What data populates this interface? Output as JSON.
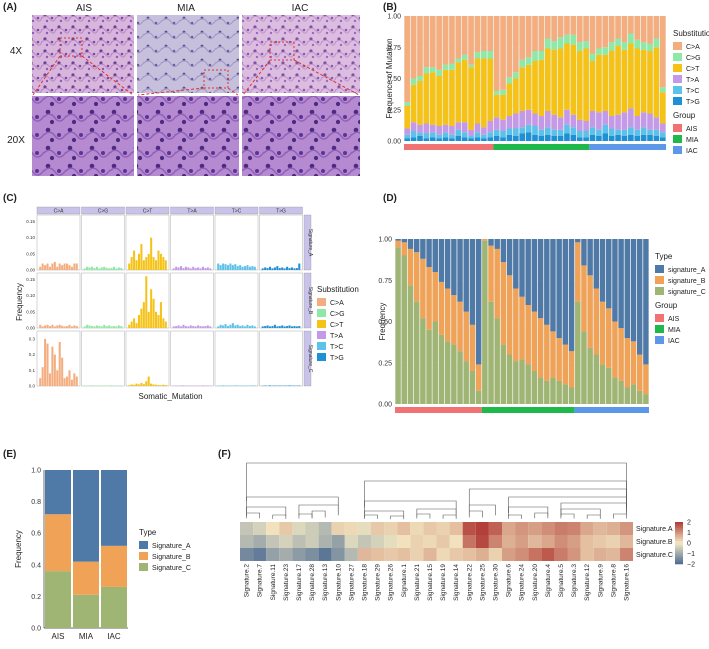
{
  "panels": {
    "A": {
      "label": "(A)",
      "columns": [
        "AIS",
        "MIA",
        "IAC"
      ],
      "rows": [
        "4X",
        "20X"
      ]
    },
    "B": {
      "label": "(B)"
    },
    "C": {
      "label": "(C)"
    },
    "D": {
      "label": "(D)"
    },
    "E": {
      "label": "(E)"
    },
    "F": {
      "label": "(F)"
    }
  },
  "colors": {
    "CA": "#f4ad7e",
    "CG": "#8ee8a6",
    "CT": "#f5c218",
    "TA": "#c49ae8",
    "TC": "#5cc2ea",
    "TG": "#1e90d6",
    "sigA": "#4f7aa8",
    "sigB": "#f0a257",
    "sigC": "#9fb574",
    "AIS": "#f07272",
    "MIA": "#1fb84b",
    "IAC": "#5d97e8"
  },
  "chart_data": [
    {
      "id": "B",
      "type": "bar",
      "stacked": true,
      "title": "",
      "xlabel": "",
      "ylabel": "Frequence of Mutation",
      "ylim": [
        0,
        1
      ],
      "yticks": [
        "0.00",
        "0.25",
        "0.50",
        "0.75",
        "1.00"
      ],
      "legend": {
        "title": "Substitution",
        "labels": [
          "C>A",
          "C>G",
          "C>T",
          "T>A",
          "T>C",
          "T>G"
        ]
      },
      "group_legend": {
        "title": "Group",
        "labels": [
          "AIS",
          "MIA",
          "IAC"
        ]
      },
      "groups": [
        {
          "name": "AIS",
          "count": 14
        },
        {
          "name": "MIA",
          "count": 15
        },
        {
          "name": "IAC",
          "count": 12
        }
      ],
      "series": [
        {
          "name": "T>G",
          "values": [
            0.02,
            0.03,
            0.04,
            0.02,
            0.03,
            0.02,
            0.03,
            0.02,
            0.04,
            0.03,
            0.02,
            0.03,
            0.02,
            0.03,
            0.04,
            0.03,
            0.05,
            0.04,
            0.06,
            0.07,
            0.05,
            0.04,
            0.05,
            0.04,
            0.04,
            0.06,
            0.05,
            0.03,
            0.03,
            0.05,
            0.04,
            0.06,
            0.04,
            0.05,
            0.04,
            0.05,
            0.04,
            0.05,
            0.05,
            0.04,
            0.03
          ]
        },
        {
          "name": "T>C",
          "values": [
            0.03,
            0.05,
            0.03,
            0.04,
            0.04,
            0.03,
            0.04,
            0.03,
            0.05,
            0.04,
            0.02,
            0.04,
            0.03,
            0.04,
            0.05,
            0.05,
            0.05,
            0.06,
            0.05,
            0.06,
            0.07,
            0.05,
            0.06,
            0.05,
            0.05,
            0.07,
            0.06,
            0.05,
            0.05,
            0.06,
            0.05,
            0.07,
            0.06,
            0.04,
            0.05,
            0.06,
            0.05,
            0.06,
            0.04,
            0.05,
            0.04
          ]
        },
        {
          "name": "T>A",
          "values": [
            0.05,
            0.07,
            0.06,
            0.08,
            0.06,
            0.07,
            0.06,
            0.07,
            0.06,
            0.08,
            0.05,
            0.07,
            0.06,
            0.09,
            0.1,
            0.09,
            0.1,
            0.12,
            0.13,
            0.12,
            0.1,
            0.11,
            0.13,
            0.12,
            0.1,
            0.12,
            0.1,
            0.09,
            0.08,
            0.13,
            0.14,
            0.11,
            0.1,
            0.12,
            0.14,
            0.15,
            0.11,
            0.12,
            0.13,
            0.1,
            0.07
          ]
        },
        {
          "name": "C>T",
          "values": [
            0.18,
            0.3,
            0.35,
            0.4,
            0.42,
            0.4,
            0.44,
            0.45,
            0.48,
            0.5,
            0.5,
            0.52,
            0.55,
            0.5,
            0.18,
            0.2,
            0.26,
            0.28,
            0.35,
            0.36,
            0.42,
            0.45,
            0.5,
            0.52,
            0.55,
            0.53,
            0.56,
            0.55,
            0.58,
            0.4,
            0.46,
            0.45,
            0.52,
            0.55,
            0.5,
            0.52,
            0.54,
            0.5,
            0.5,
            0.56,
            0.25
          ]
        },
        {
          "name": "C>G",
          "values": [
            0.03,
            0.05,
            0.04,
            0.05,
            0.04,
            0.05,
            0.04,
            0.05,
            0.03,
            0.04,
            0.02,
            0.05,
            0.06,
            0.06,
            0.03,
            0.04,
            0.05,
            0.05,
            0.06,
            0.06,
            0.08,
            0.07,
            0.08,
            0.07,
            0.09,
            0.07,
            0.08,
            0.07,
            0.06,
            0.06,
            0.05,
            0.06,
            0.07,
            0.06,
            0.06,
            0.08,
            0.07,
            0.06,
            0.06,
            0.07,
            0.04
          ]
        },
        {
          "name": "C>A",
          "values": [
            0.69,
            0.5,
            0.48,
            0.41,
            0.41,
            0.43,
            0.39,
            0.38,
            0.34,
            0.31,
            0.39,
            0.29,
            0.28,
            0.28,
            0.6,
            0.59,
            0.49,
            0.45,
            0.35,
            0.33,
            0.28,
            0.28,
            0.18,
            0.2,
            0.17,
            0.15,
            0.15,
            0.21,
            0.2,
            0.3,
            0.26,
            0.25,
            0.21,
            0.18,
            0.21,
            0.14,
            0.19,
            0.21,
            0.22,
            0.18,
            0.57
          ]
        }
      ]
    },
    {
      "id": "C",
      "type": "bar",
      "faceted": true,
      "xlabel": "Somatic_Mutation",
      "ylabel": "Frequency",
      "columns": [
        "C>A",
        "C>G",
        "C>T",
        "T>A",
        "T>C",
        "T>G"
      ],
      "rows": [
        "Signature_A",
        "Signature_B",
        "Signature_C"
      ],
      "row_yticks": [
        [
          "0.00",
          "0.05",
          "0.10",
          "0.15"
        ],
        [
          "0.00",
          "0.05",
          "0.10",
          "0.15"
        ],
        [
          "0.0",
          "0.1",
          "0.2",
          "0.3"
        ]
      ],
      "row_ymax": [
        0.17,
        0.17,
        0.35
      ],
      "legend": {
        "title": "Substitution",
        "labels": [
          "C>A",
          "C>G",
          "C>T",
          "T>A",
          "T>C",
          "T>G"
        ]
      },
      "bins": [
        [
          [
            0.01,
            0.02,
            0.015,
            0.02,
            0.01,
            0.02,
            0.025,
            0.01,
            0.02,
            0.015,
            0.02,
            0.02,
            0.015,
            0.01,
            0.02,
            0.02
          ],
          [
            0.005,
            0.01,
            0.008,
            0.01,
            0.006,
            0.01,
            0.005,
            0.008,
            0.01,
            0.007,
            0.005,
            0.006,
            0.01,
            0.005,
            0.008,
            0.006
          ],
          [
            0.02,
            0.04,
            0.06,
            0.03,
            0.05,
            0.08,
            0.03,
            0.04,
            0.05,
            0.1,
            0.04,
            0.03,
            0.06,
            0.05,
            0.04,
            0.03
          ],
          [
            0.005,
            0.01,
            0.008,
            0.012,
            0.006,
            0.01,
            0.008,
            0.005,
            0.01,
            0.006,
            0.008,
            0.005,
            0.01,
            0.006,
            0.008,
            0.005
          ],
          [
            0.02,
            0.015,
            0.02,
            0.018,
            0.015,
            0.02,
            0.015,
            0.018,
            0.012,
            0.015,
            0.01,
            0.012,
            0.015,
            0.01,
            0.012,
            0.01
          ],
          [
            0.005,
            0.008,
            0.006,
            0.01,
            0.005,
            0.008,
            0.012,
            0.006,
            0.008,
            0.005,
            0.01,
            0.006,
            0.008,
            0.005,
            0.006,
            0.02
          ]
        ],
        [
          [
            0.01,
            0.005,
            0.008,
            0.01,
            0.006,
            0.01,
            0.005,
            0.008,
            0.01,
            0.007,
            0.005,
            0.006,
            0.01,
            0.005,
            0.008,
            0.006
          ],
          [
            0.005,
            0.01,
            0.008,
            0.006,
            0.005,
            0.008,
            0.006,
            0.005,
            0.01,
            0.006,
            0.008,
            0.005,
            0.006,
            0.005,
            0.008,
            0.006
          ],
          [
            0.01,
            0.02,
            0.03,
            0.015,
            0.04,
            0.06,
            0.08,
            0.16,
            0.05,
            0.12,
            0.09,
            0.05,
            0.04,
            0.08,
            0.03,
            0.02
          ],
          [
            0.005,
            0.006,
            0.008,
            0.005,
            0.01,
            0.006,
            0.005,
            0.008,
            0.006,
            0.005,
            0.008,
            0.006,
            0.005,
            0.006,
            0.008,
            0.005
          ],
          [
            0.005,
            0.01,
            0.008,
            0.012,
            0.006,
            0.01,
            0.015,
            0.008,
            0.01,
            0.006,
            0.008,
            0.005,
            0.01,
            0.006,
            0.008,
            0.005
          ],
          [
            0.005,
            0.006,
            0.008,
            0.005,
            0.006,
            0.01,
            0.005,
            0.006,
            0.008,
            0.005,
            0.006,
            0.008,
            0.005,
            0.006,
            0.005,
            0.006
          ]
        ],
        [
          [
            0.05,
            0.12,
            0.3,
            0.27,
            0.08,
            0.25,
            0.2,
            0.1,
            0.28,
            0.18,
            0.05,
            0.06,
            0.1,
            0.04,
            0.08,
            0.06
          ],
          [
            0.002,
            0.003,
            0.002,
            0.004,
            0.002,
            0.003,
            0.002,
            0.003,
            0.002,
            0.003,
            0.002,
            0.004,
            0.002,
            0.003,
            0.002,
            0.003
          ],
          [
            0.005,
            0.01,
            0.008,
            0.015,
            0.01,
            0.02,
            0.012,
            0.03,
            0.06,
            0.015,
            0.01,
            0.008,
            0.006,
            0.005,
            0.008,
            0.006
          ],
          [
            0.002,
            0.003,
            0.002,
            0.003,
            0.004,
            0.002,
            0.003,
            0.002,
            0.003,
            0.002,
            0.003,
            0.002,
            0.004,
            0.002,
            0.003,
            0.002
          ],
          [
            0.003,
            0.002,
            0.004,
            0.003,
            0.002,
            0.003,
            0.002,
            0.004,
            0.003,
            0.002,
            0.003,
            0.002,
            0.003,
            0.002,
            0.004,
            0.003
          ],
          [
            0.002,
            0.003,
            0.002,
            0.004,
            0.002,
            0.003,
            0.002,
            0.003,
            0.002,
            0.003,
            0.002,
            0.004,
            0.002,
            0.003,
            0.002,
            0.003
          ]
        ]
      ]
    },
    {
      "id": "D",
      "type": "bar",
      "stacked": true,
      "xlabel": "",
      "ylabel": "Frequency",
      "ylim": [
        0,
        1
      ],
      "yticks": [
        "0.00",
        "0.25",
        "0.50",
        "0.75",
        "1.00"
      ],
      "legend": {
        "title": "Type",
        "labels": [
          "signature_A",
          "signature_B",
          "signature_C"
        ]
      },
      "group_legend": {
        "title": "Group",
        "labels": [
          "AIS",
          "MIA",
          "IAC"
        ]
      },
      "groups": [
        {
          "name": "AIS",
          "count": 14
        },
        {
          "name": "MIA",
          "count": 15
        },
        {
          "name": "IAC",
          "count": 12
        }
      ],
      "series": [
        {
          "name": "signature_C",
          "values": [
            0.95,
            0.9,
            0.72,
            0.62,
            0.52,
            0.45,
            0.5,
            0.42,
            0.38,
            0.36,
            0.32,
            0.26,
            0.2,
            0.08,
            0.99,
            0.62,
            0.52,
            0.36,
            0.3,
            0.26,
            0.27,
            0.24,
            0.2,
            0.16,
            0.14,
            0.16,
            0.14,
            0.12,
            0.1,
            0.62,
            0.44,
            0.34,
            0.3,
            0.24,
            0.22,
            0.16,
            0.14,
            0.1,
            0.12,
            0.08,
            0.06
          ]
        },
        {
          "name": "signature_B",
          "values": [
            0.04,
            0.08,
            0.22,
            0.3,
            0.36,
            0.38,
            0.3,
            0.32,
            0.32,
            0.3,
            0.3,
            0.3,
            0.28,
            0.16,
            0.01,
            0.34,
            0.42,
            0.5,
            0.48,
            0.44,
            0.38,
            0.36,
            0.36,
            0.36,
            0.34,
            0.28,
            0.26,
            0.24,
            0.22,
            0.36,
            0.4,
            0.44,
            0.4,
            0.38,
            0.36,
            0.34,
            0.32,
            0.3,
            0.26,
            0.22,
            0.18
          ]
        },
        {
          "name": "signature_A",
          "values": [
            0.01,
            0.02,
            0.06,
            0.08,
            0.12,
            0.17,
            0.2,
            0.26,
            0.3,
            0.34,
            0.38,
            0.44,
            0.52,
            0.76,
            0.0,
            0.04,
            0.06,
            0.14,
            0.22,
            0.3,
            0.35,
            0.4,
            0.44,
            0.48,
            0.52,
            0.56,
            0.6,
            0.64,
            0.68,
            0.02,
            0.16,
            0.22,
            0.3,
            0.38,
            0.42,
            0.5,
            0.54,
            0.6,
            0.62,
            0.7,
            0.76
          ]
        }
      ]
    },
    {
      "id": "E",
      "type": "bar",
      "stacked": true,
      "xlabel": "",
      "ylabel": "Frequency",
      "ylim": [
        0,
        1
      ],
      "yticks": [
        "0.0",
        "0.2",
        "0.4",
        "0.6",
        "0.8",
        "1.0"
      ],
      "categories": [
        "AIS",
        "MIA",
        "IAC"
      ],
      "legend": {
        "title": "Type",
        "labels": [
          "Signature_A",
          "Signature_B",
          "Signature_C"
        ]
      },
      "series": [
        {
          "name": "Signature_C",
          "values": [
            0.36,
            0.21,
            0.26
          ]
        },
        {
          "name": "Signature_B",
          "values": [
            0.36,
            0.21,
            0.26
          ]
        },
        {
          "name": "Signature_A",
          "values": [
            0.28,
            0.58,
            0.48
          ]
        }
      ]
    },
    {
      "id": "F",
      "type": "heatmap",
      "rows": [
        "Signature.A",
        "Signature.B",
        "Signature.C"
      ],
      "columns": [
        "Signature.2",
        "Signature.7",
        "Signature.11",
        "Signature.23",
        "Signature.17",
        "Signature.28",
        "Signature.13",
        "Signature.10",
        "Signature.27",
        "Signature.18",
        "Signature.29",
        "Signature.26",
        "Signature.1",
        "Signature.21",
        "Signature.15",
        "Signature.19",
        "Signature.14",
        "Signature.22",
        "Signature.25",
        "Signature.30",
        "Signature.6",
        "Signature.24",
        "Signature.20",
        "Signature.4",
        "Signature.5",
        "Signature.3",
        "Signature.12",
        "Signature.9",
        "Signature.8",
        "Signature.16"
      ],
      "colorbar_ticks": [
        "2",
        "1",
        "0",
        "−1",
        "−2"
      ],
      "colorbar_range": [
        -2,
        2
      ],
      "values": [
        [
          -0.6,
          -0.4,
          0.1,
          0.4,
          -0.3,
          -0.5,
          -0.8,
          0.3,
          0.2,
          -0.2,
          0.4,
          0.3,
          0.5,
          0.2,
          0.4,
          0.3,
          0.5,
          1.8,
          2.1,
          1.6,
          0.8,
          1.0,
          0.9,
          1.1,
          1.3,
          1.2,
          0.8,
          0.6,
          0.7,
          1.0
        ],
        [
          -0.8,
          -1.0,
          -0.6,
          -0.4,
          -0.7,
          -0.5,
          -0.9,
          -1.2,
          -0.3,
          -0.6,
          -0.4,
          -0.2,
          0.1,
          0.3,
          0.2,
          0.4,
          0.1,
          1.4,
          1.9,
          1.2,
          0.7,
          0.9,
          0.6,
          0.8,
          1.1,
          0.9,
          0.5,
          0.4,
          0.3,
          0.6
        ],
        [
          -1.6,
          -1.8,
          -1.2,
          -1.0,
          -1.3,
          -1.5,
          -1.9,
          -1.4,
          -0.8,
          0.6,
          0.5,
          0.4,
          0.5,
          0.3,
          0.6,
          0.2,
          0.4,
          0.5,
          0.7,
          0.3,
          0.9,
          1.1,
          1.4,
          1.7,
          1.3,
          1.0,
          0.5,
          0.7,
          0.6,
          1.2
        ]
      ]
    }
  ]
}
